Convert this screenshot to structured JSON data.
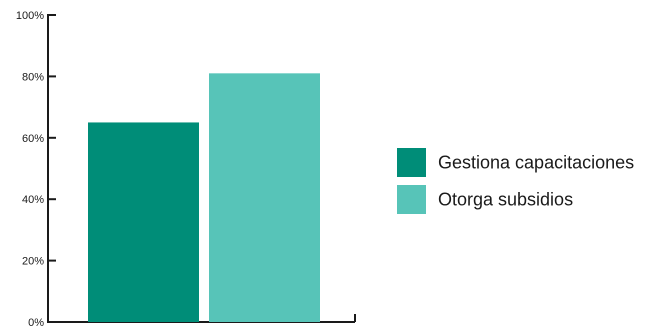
{
  "chart_data": {
    "type": "bar",
    "title": "",
    "xlabel": "",
    "ylabel": "",
    "ylim": [
      0,
      100
    ],
    "y_ticks": [
      0,
      20,
      40,
      60,
      80,
      100
    ],
    "y_tick_labels": [
      "0%",
      "20%",
      "40%",
      "60%",
      "80%",
      "100%"
    ],
    "grid": false,
    "legend_position": "right",
    "series": [
      {
        "name": "Gestiona capacitaciones",
        "values": [
          65
        ],
        "color": "#008d78"
      },
      {
        "name": "Otorga subsidios",
        "values": [
          81
        ],
        "color": "#57c4b8"
      }
    ]
  }
}
